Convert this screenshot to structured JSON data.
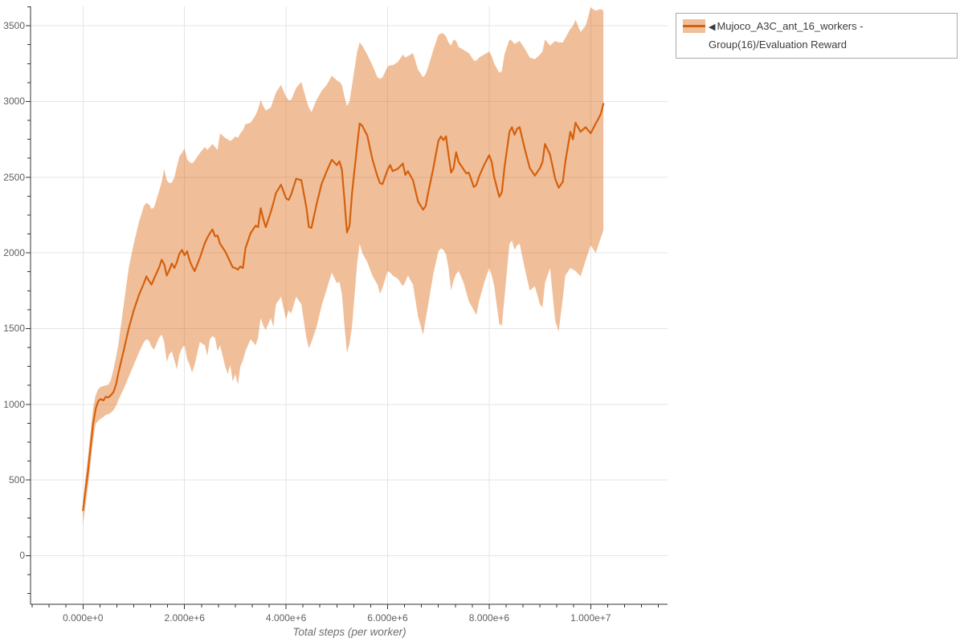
{
  "chart_data": {
    "type": "line",
    "title": "",
    "xlabel": "Total steps (per worker)",
    "ylabel": "",
    "grid": true,
    "legend_position": "outside-top-right",
    "x_axis": {
      "tick_values_e6": [
        0,
        2,
        4,
        6,
        8,
        10
      ],
      "tick_labels": [
        "0.000e+0",
        "2.000e+6",
        "4.000e+6",
        "6.000e+6",
        "8.000e+6",
        "1.000e+7"
      ],
      "minor_tick_step_e6": 0.33333,
      "range_e6": [
        -1.033,
        11.514
      ]
    },
    "y_axis": {
      "tick_values": [
        0,
        500,
        1000,
        1500,
        2000,
        2500,
        3000,
        3500
      ],
      "tick_labels": [
        "0",
        "500",
        "1000",
        "1500",
        "2000",
        "2500",
        "3000",
        "3500"
      ],
      "minor_tick_step": 125,
      "range": [
        -321,
        3628
      ]
    },
    "series": [
      {
        "name": "Mujoco_A3C_ant_16_workers - Group(16)/Evaluation Reward",
        "x_steps_e6": [
          0,
          0.05,
          0.1,
          0.15,
          0.2,
          0.25,
          0.3,
          0.35,
          0.4,
          0.45,
          0.5,
          0.55,
          0.6,
          0.65,
          0.7,
          0.8,
          0.9,
          1.0,
          1.1,
          1.2,
          1.25,
          1.3,
          1.35,
          1.4,
          1.5,
          1.55,
          1.6,
          1.65,
          1.7,
          1.75,
          1.8,
          1.85,
          1.9,
          1.95,
          2.0,
          2.05,
          2.1,
          2.15,
          2.2,
          2.3,
          2.4,
          2.45,
          2.5,
          2.55,
          2.6,
          2.65,
          2.7,
          2.8,
          2.85,
          2.9,
          2.95,
          3.0,
          3.05,
          3.1,
          3.15,
          3.2,
          3.3,
          3.4,
          3.45,
          3.5,
          3.55,
          3.6,
          3.7,
          3.75,
          3.8,
          3.9,
          4.0,
          4.05,
          4.1,
          4.2,
          4.3,
          4.4,
          4.45,
          4.5,
          4.6,
          4.7,
          4.8,
          4.9,
          5.0,
          5.05,
          5.1,
          5.15,
          5.2,
          5.25,
          5.3,
          5.4,
          5.45,
          5.5,
          5.6,
          5.7,
          5.8,
          5.85,
          5.9,
          6.0,
          6.05,
          6.1,
          6.2,
          6.3,
          6.35,
          6.4,
          6.5,
          6.6,
          6.7,
          6.75,
          6.8,
          6.9,
          7.0,
          7.05,
          7.1,
          7.15,
          7.2,
          7.25,
          7.3,
          7.35,
          7.4,
          7.5,
          7.55,
          7.6,
          7.7,
          7.75,
          7.8,
          7.9,
          8.0,
          8.05,
          8.1,
          8.2,
          8.25,
          8.3,
          8.4,
          8.45,
          8.5,
          8.55,
          8.6,
          8.7,
          8.8,
          8.9,
          9.0,
          9.05,
          9.1,
          9.2,
          9.3,
          9.37,
          9.45,
          9.5,
          9.6,
          9.65,
          9.7,
          9.8,
          9.9,
          10.0,
          10.1,
          10.15,
          10.2,
          10.25
        ],
        "mean": [
          300,
          430,
          560,
          720,
          870,
          970,
          1020,
          1035,
          1025,
          1050,
          1045,
          1060,
          1080,
          1130,
          1210,
          1350,
          1500,
          1620,
          1720,
          1800,
          1845,
          1815,
          1790,
          1830,
          1905,
          1955,
          1925,
          1850,
          1885,
          1930,
          1900,
          1940,
          1995,
          2020,
          1985,
          2010,
          1950,
          1910,
          1880,
          1965,
          2065,
          2100,
          2130,
          2155,
          2110,
          2115,
          2060,
          2010,
          1975,
          1940,
          1905,
          1900,
          1890,
          1910,
          1900,
          2030,
          2130,
          2180,
          2170,
          2295,
          2225,
          2170,
          2270,
          2330,
          2395,
          2450,
          2360,
          2350,
          2385,
          2490,
          2480,
          2300,
          2170,
          2165,
          2320,
          2455,
          2540,
          2615,
          2580,
          2605,
          2550,
          2350,
          2135,
          2180,
          2400,
          2710,
          2855,
          2840,
          2775,
          2620,
          2505,
          2460,
          2455,
          2550,
          2580,
          2540,
          2555,
          2590,
          2515,
          2540,
          2480,
          2340,
          2285,
          2310,
          2400,
          2560,
          2740,
          2770,
          2745,
          2770,
          2650,
          2530,
          2560,
          2665,
          2600,
          2550,
          2525,
          2530,
          2435,
          2450,
          2505,
          2580,
          2645,
          2600,
          2500,
          2370,
          2400,
          2560,
          2800,
          2830,
          2780,
          2820,
          2830,
          2690,
          2560,
          2510,
          2560,
          2600,
          2720,
          2650,
          2490,
          2430,
          2470,
          2600,
          2800,
          2750,
          2860,
          2800,
          2830,
          2790,
          2855,
          2885,
          2920,
          2985
        ],
        "band_lower": [
          205,
          330,
          460,
          610,
          760,
          870,
          890,
          905,
          915,
          930,
          935,
          945,
          960,
          990,
          1030,
          1100,
          1180,
          1260,
          1340,
          1410,
          1430,
          1420,
          1380,
          1360,
          1440,
          1460,
          1410,
          1280,
          1330,
          1350,
          1290,
          1230,
          1330,
          1370,
          1390,
          1300,
          1260,
          1210,
          1260,
          1410,
          1390,
          1320,
          1430,
          1450,
          1440,
          1350,
          1390,
          1250,
          1200,
          1260,
          1150,
          1200,
          1130,
          1250,
          1290,
          1350,
          1430,
          1390,
          1440,
          1570,
          1520,
          1490,
          1570,
          1510,
          1660,
          1710,
          1560,
          1620,
          1600,
          1710,
          1660,
          1440,
          1370,
          1410,
          1510,
          1650,
          1760,
          1870,
          1800,
          1810,
          1730,
          1520,
          1340,
          1400,
          1520,
          1930,
          2060,
          2000,
          1940,
          1850,
          1790,
          1730,
          1770,
          1880,
          1870,
          1850,
          1830,
          1780,
          1810,
          1850,
          1790,
          1580,
          1460,
          1560,
          1660,
          1860,
          2010,
          2030,
          2020,
          1990,
          1900,
          1750,
          1820,
          1860,
          1880,
          1800,
          1740,
          1680,
          1620,
          1590,
          1680,
          1800,
          1900,
          1850,
          1780,
          1530,
          1520,
          1700,
          2060,
          2080,
          2020,
          2050,
          2060,
          1900,
          1750,
          1780,
          1660,
          1640,
          1800,
          1900,
          1550,
          1480,
          1700,
          1850,
          1900,
          1890,
          1880,
          1845,
          1950,
          2050,
          2000,
          2050,
          2100,
          2150
        ],
        "band_upper": [
          350,
          520,
          660,
          820,
          980,
          1060,
          1100,
          1115,
          1120,
          1125,
          1130,
          1160,
          1230,
          1310,
          1400,
          1650,
          1900,
          2060,
          2200,
          2310,
          2330,
          2320,
          2290,
          2300,
          2410,
          2470,
          2554,
          2480,
          2460,
          2465,
          2500,
          2571,
          2640,
          2660,
          2690,
          2620,
          2600,
          2590,
          2610,
          2660,
          2700,
          2680,
          2700,
          2720,
          2700,
          2680,
          2790,
          2760,
          2750,
          2740,
          2750,
          2770,
          2760,
          2790,
          2810,
          2850,
          2860,
          2910,
          2950,
          3010,
          2970,
          2940,
          2960,
          3010,
          3060,
          3110,
          3030,
          3010,
          3010,
          3090,
          3130,
          3010,
          2960,
          2930,
          3010,
          3070,
          3110,
          3170,
          3140,
          3130,
          3110,
          3030,
          2970,
          3000,
          3110,
          3330,
          3390,
          3370,
          3310,
          3240,
          3160,
          3150,
          3160,
          3230,
          3240,
          3240,
          3260,
          3310,
          3290,
          3300,
          3320,
          3210,
          3160,
          3180,
          3230,
          3340,
          3440,
          3450,
          3450,
          3430,
          3390,
          3370,
          3410,
          3400,
          3360,
          3340,
          3330,
          3320,
          3270,
          3270,
          3290,
          3310,
          3330,
          3300,
          3250,
          3190,
          3200,
          3310,
          3410,
          3400,
          3380,
          3390,
          3400,
          3350,
          3290,
          3280,
          3310,
          3330,
          3410,
          3370,
          3400,
          3390,
          3390,
          3420,
          3480,
          3500,
          3540,
          3460,
          3500,
          3620,
          3600,
          3605,
          3610,
          3600
        ]
      }
    ]
  },
  "legend": {
    "collapse_icon": "◀",
    "entries": [
      {
        "label": "Mujoco_A3C_ant_16_workers - Group(16)/Evaluation Reward"
      }
    ]
  },
  "colors": {
    "line": "#d5600d",
    "band": "rgba(217,95,2,0.4)",
    "grid": "#e5e5e5",
    "axis": "#333333",
    "tick_label": "#5f5f5f",
    "axis_title": "#6e6e6e",
    "legend_text": "#3c3c3c",
    "legend_border": "#a9a9a9",
    "background": "#ffffff"
  }
}
